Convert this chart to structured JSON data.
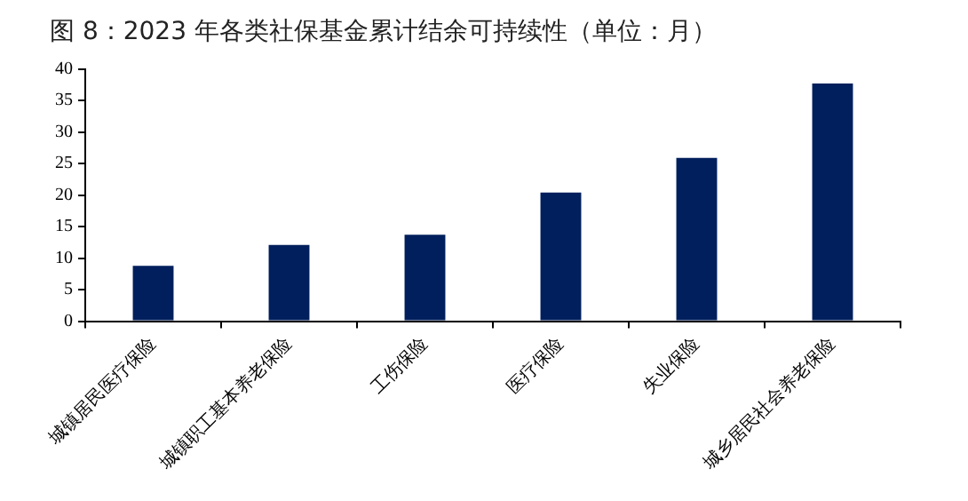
{
  "chart_data": {
    "type": "bar",
    "title": "图 8：2023 年各类社保基金累计结余可持续性（单位：月）",
    "categories": [
      "城镇居民医疗保险",
      "城镇职工基本养老保险",
      "工伤保险",
      "医疗保险",
      "失业保险",
      "城乡居民社会养老保险"
    ],
    "values": [
      8.8,
      12.1,
      13.7,
      20.4,
      25.9,
      37.7
    ],
    "color": "#001f5c",
    "ylim": [
      0,
      40
    ],
    "yticks": [
      0,
      5,
      10,
      15,
      20,
      25,
      30,
      35,
      40
    ]
  }
}
